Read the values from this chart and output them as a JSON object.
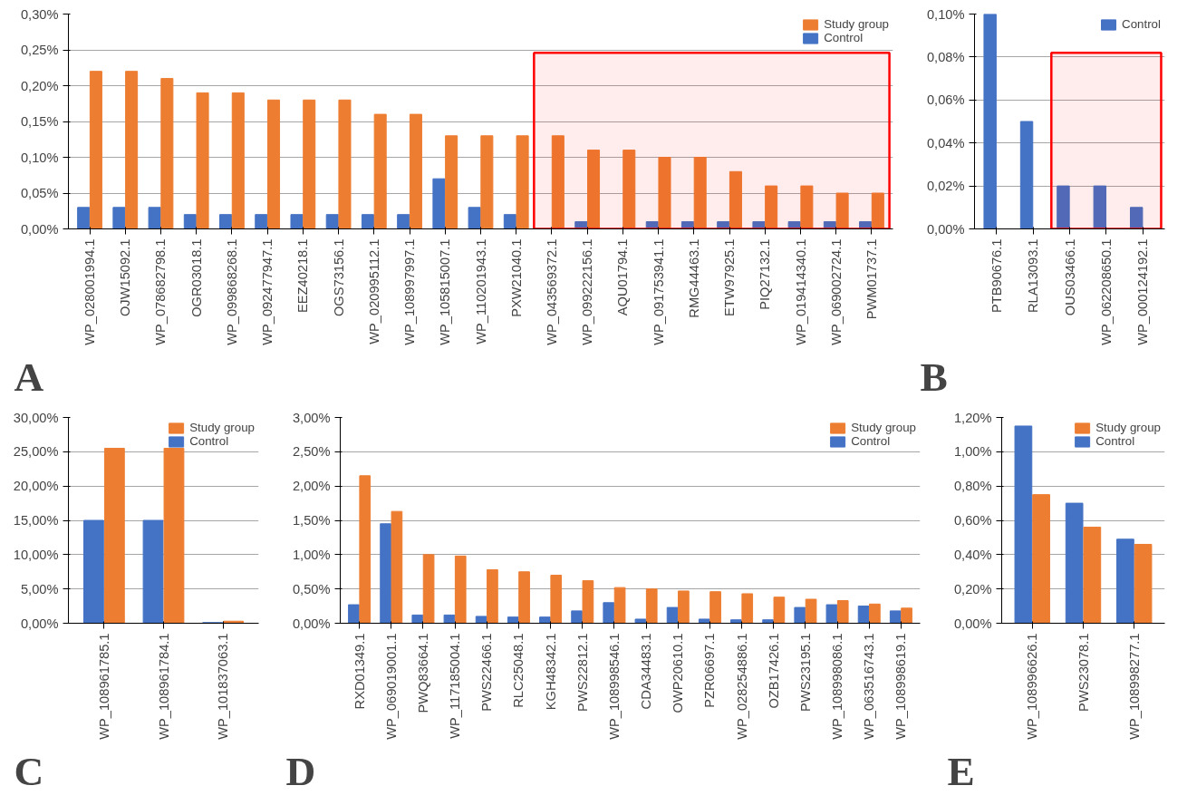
{
  "chart_data": [
    {
      "type": "bar",
      "annotations": [
        "A"
      ],
      "legend": "top right",
      "grid": "y",
      "categories": [
        "WP_028001994.1",
        "OJW15092.1",
        "WP_078682798.1",
        "OGR03018.1",
        "WP_099868268.1",
        "WP_092477947.1",
        "EEZ40218.1",
        "OGS73156.1",
        "WP_020995112.1",
        "WP_108997997.1",
        "WP_105815007.1",
        "WP_110201943.1",
        "PXW21040.1",
        "WP_043569372.1",
        "WP_099222156.1",
        "AQU01794.1",
        "WP_091753941.1",
        "RMG44463.1",
        "ETW97925.1",
        "PIQ27132.1",
        "WP_019414340.1",
        "WP_069002724.1",
        "PWM01737.1"
      ],
      "series": [
        {
          "name": "Control",
          "color": "#4472c4",
          "values": [
            0.03,
            0.03,
            0.03,
            0.02,
            0.02,
            0.02,
            0.02,
            0.02,
            0.02,
            0.02,
            0.07,
            0.03,
            0.02,
            0,
            0.01,
            0,
            0.01,
            0.01,
            0.01,
            0.01,
            0.01,
            0.01,
            0.01
          ]
        },
        {
          "name": "Study group",
          "color": "#ed7d31",
          "values": [
            0.22,
            0.22,
            0.21,
            0.19,
            0.19,
            0.18,
            0.18,
            0.18,
            0.16,
            0.16,
            0.13,
            0.13,
            0.13,
            0.13,
            0.11,
            0.11,
            0.1,
            0.1,
            0.08,
            0.06,
            0.06,
            0.05,
            0.05
          ]
        }
      ],
      "ylim": [
        0,
        0.3
      ],
      "yticks": [
        {
          "value": 0,
          "label": "0,00%"
        },
        {
          "value": 0.05,
          "label": "0,05%"
        },
        {
          "value": 0.1,
          "label": "0,10%"
        },
        {
          "value": 0.15,
          "label": "0,15%"
        },
        {
          "value": 0.2,
          "label": "0,20%"
        },
        {
          "value": 0.25,
          "label": "0,25%"
        },
        {
          "value": 0.3,
          "label": "0,30%"
        }
      ],
      "bands": [
        {
          "axis": "x",
          "from": "WP_043569372.1",
          "to": "PWM01737.1",
          "color": "#ff0000"
        }
      ]
    },
    {
      "type": "bar",
      "annotations": [
        "B"
      ],
      "legend": "top right",
      "grid": "y",
      "categories": [
        "PTB90676.1",
        "RLA13093.1",
        "OUS03466.1",
        "WP_062208650.1",
        "WP_000124192.1"
      ],
      "series": [
        {
          "name": "Control",
          "color": "#4472c4",
          "values": [
            0.1,
            0.05,
            0.02,
            0.02,
            0.01
          ]
        },
        {
          "color": "#ed7d31",
          "values": [
            0,
            0,
            0,
            0,
            0
          ]
        }
      ],
      "ylim": [
        0,
        0.1
      ],
      "yticks": [
        {
          "value": 0,
          "label": "0,00%"
        },
        {
          "value": 0.02,
          "label": "0,02%"
        },
        {
          "value": 0.04,
          "label": "0,04%"
        },
        {
          "value": 0.06,
          "label": "0,06%"
        },
        {
          "value": 0.08,
          "label": "0,08%"
        },
        {
          "value": 0.1,
          "label": "0,10%"
        }
      ],
      "bands": [
        {
          "axis": "x",
          "from": "OUS03466.1",
          "to": "WP_000124192.1",
          "color": "#ff0000"
        }
      ]
    },
    {
      "type": "bar",
      "annotations": [
        "C"
      ],
      "legend": "top right",
      "grid": "y",
      "categories": [
        "WP_108961785.1",
        "WP_108961784.1",
        "WP_101837063.1"
      ],
      "series": [
        {
          "name": "Control",
          "color": "#4472c4",
          "values": [
            15,
            15,
            0.1
          ]
        },
        {
          "name": "Study group",
          "color": "#ed7d31",
          "values": [
            25.5,
            25.5,
            0.3
          ]
        }
      ],
      "ylim": [
        0,
        30
      ],
      "yticks": [
        {
          "value": 0,
          "label": "0,00%"
        },
        {
          "value": 5,
          "label": "5,00%"
        },
        {
          "value": 10,
          "label": "10,00%"
        },
        {
          "value": 15,
          "label": "15,00%"
        },
        {
          "value": 20,
          "label": "20,00%"
        },
        {
          "value": 25,
          "label": "25,00%"
        },
        {
          "value": 30,
          "label": "30,00%"
        }
      ]
    },
    {
      "type": "bar",
      "annotations": [
        "D"
      ],
      "legend": "top right",
      "grid": "y",
      "categories": [
        "RXD01349.1",
        "WP_069019001.1",
        "PWQ83664.1",
        "WP_117185004.1",
        "PWS22466.1",
        "RLC25048.1",
        "KGH48342.1",
        "PWS22812.1",
        "WP_108998546.1",
        "CDA34483.1",
        "OWP20610.1",
        "PZR06697.1",
        "WP_028254886.1",
        "OZB17426.1",
        "PWS23195.1",
        "WP_108998086.1",
        "WP_063516743.1",
        "WP_108998619.1"
      ],
      "series": [
        {
          "name": "Control",
          "color": "#4472c4",
          "values": [
            0.27,
            1.45,
            0.12,
            0.12,
            0.1,
            0.09,
            0.09,
            0.18,
            0.3,
            0.06,
            0.23,
            0.06,
            0.05,
            0.05,
            0.23,
            0.27,
            0.25,
            0.18
          ]
        },
        {
          "name": "Study group",
          "color": "#ed7d31",
          "values": [
            2.15,
            1.63,
            1.0,
            0.98,
            0.78,
            0.75,
            0.7,
            0.62,
            0.52,
            0.5,
            0.47,
            0.46,
            0.43,
            0.38,
            0.35,
            0.33,
            0.28,
            0.22
          ]
        }
      ],
      "ylim": [
        0,
        3
      ],
      "yticks": [
        {
          "value": 0,
          "label": "0,00%"
        },
        {
          "value": 0.5,
          "label": "0,50%"
        },
        {
          "value": 1,
          "label": "1,00%"
        },
        {
          "value": 1.5,
          "label": "1,50%"
        },
        {
          "value": 2,
          "label": "2,00%"
        },
        {
          "value": 2.5,
          "label": "2,50%"
        },
        {
          "value": 3,
          "label": "3,00%"
        }
      ]
    },
    {
      "type": "bar",
      "annotations": [
        "E"
      ],
      "legend": "top right",
      "grid": "y",
      "categories": [
        "WP_108996626.1",
        "PWS23078.1",
        "WP_108998277.1"
      ],
      "series": [
        {
          "name": "Control",
          "color": "#4472c4",
          "values": [
            1.15,
            0.7,
            0.49
          ]
        },
        {
          "name": "Study group",
          "color": "#ed7d31",
          "values": [
            0.75,
            0.56,
            0.46
          ]
        }
      ],
      "ylim": [
        0,
        1.2
      ],
      "yticks": [
        {
          "value": 0,
          "label": "0,00%"
        },
        {
          "value": 0.2,
          "label": "0,20%"
        },
        {
          "value": 0.4,
          "label": "0,40%"
        },
        {
          "value": 0.6,
          "label": "0,60%"
        },
        {
          "value": 0.8,
          "label": "0,80%"
        },
        {
          "value": 1,
          "label": "1,00%"
        },
        {
          "value": 1.2,
          "label": "1,20%"
        }
      ]
    }
  ]
}
